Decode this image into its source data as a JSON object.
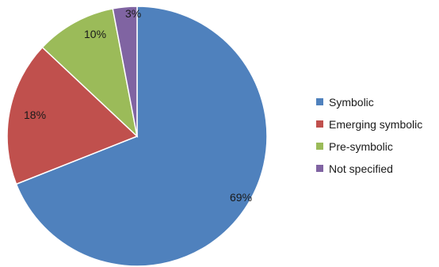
{
  "chart_data": {
    "type": "pie",
    "title": "",
    "legend_position": "right",
    "slices": [
      {
        "name": "Symbolic",
        "value": 69,
        "label": "69%",
        "color": "#4f81bd"
      },
      {
        "name": "Emerging symbolic",
        "value": 18,
        "label": "18%",
        "color": "#c0504d"
      },
      {
        "name": "Pre-symbolic",
        "value": 10,
        "label": "10%",
        "color": "#9bbb59"
      },
      {
        "name": "Not specified",
        "value": 3,
        "label": "3%",
        "color": "#8064a2"
      }
    ]
  }
}
